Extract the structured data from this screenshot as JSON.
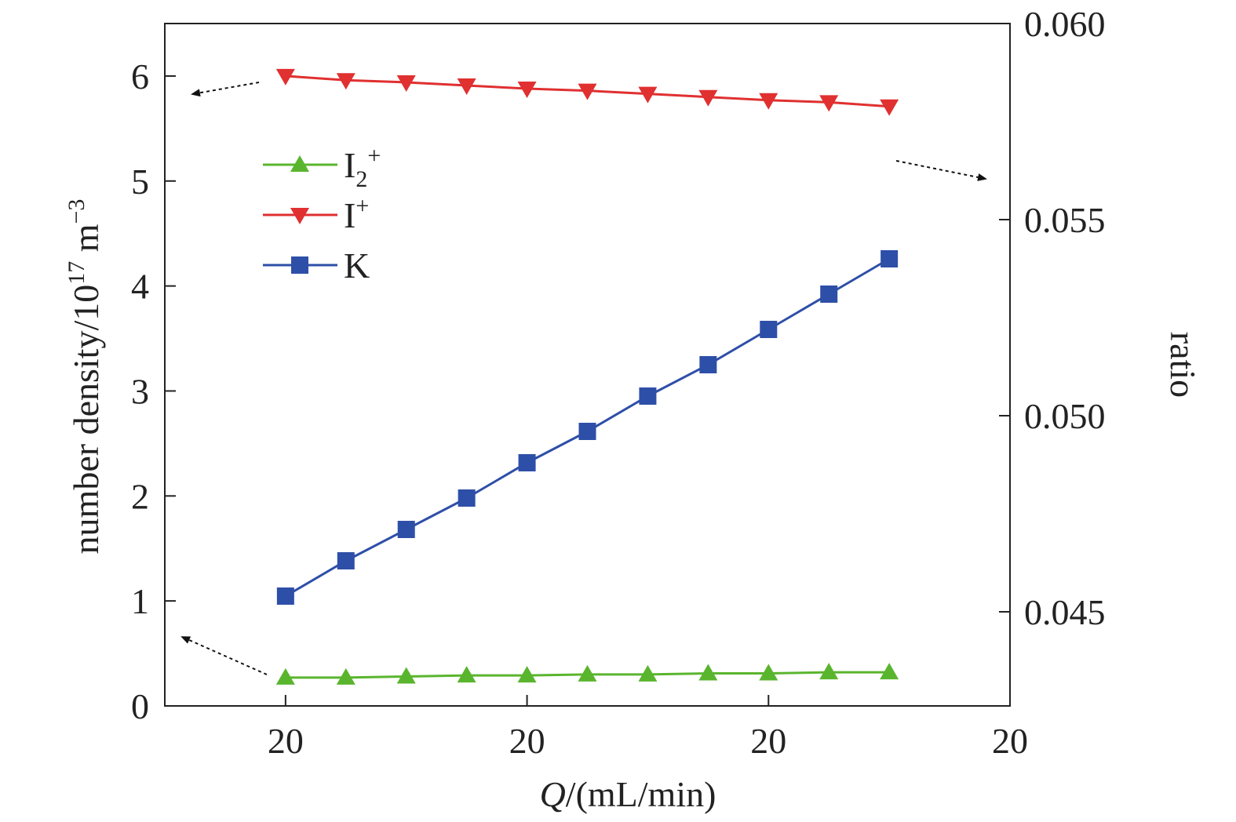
{
  "chart_data": {
    "type": "line",
    "xlabel": {
      "italic": "Q",
      "rest": "/(mL/min)"
    },
    "ylabel_left": {
      "base": "number density/10",
      "exp": "17",
      "unit": " m",
      "unit_exp": "−3"
    },
    "ylabel_right": "ratio",
    "x_ticks": [
      {
        "x": 1,
        "label": "20"
      },
      {
        "x": 5,
        "label": "20"
      },
      {
        "x": 9,
        "label": "20"
      },
      {
        "x": 13,
        "label": "20"
      }
    ],
    "xlim": [
      -1,
      13
    ],
    "y_left_ticks": [
      {
        "y": 0,
        "label": "0"
      },
      {
        "y": 1,
        "label": "1"
      },
      {
        "y": 2,
        "label": "2"
      },
      {
        "y": 3,
        "label": "3"
      },
      {
        "y": 4,
        "label": "4"
      },
      {
        "y": 5,
        "label": "5"
      },
      {
        "y": 6,
        "label": "6"
      }
    ],
    "ylim_left": [
      0,
      6.5
    ],
    "y_right_ticks": [
      {
        "y": 0.045,
        "label": "0.045"
      },
      {
        "y": 0.05,
        "label": "0.050"
      },
      {
        "y": 0.055,
        "label": "0.055"
      },
      {
        "y": 0.06,
        "label": "0.060"
      }
    ],
    "ylim_right": [
      0.0426,
      0.06
    ],
    "x": [
      1,
      2,
      3,
      4,
      5,
      6,
      7,
      8,
      9,
      10,
      11
    ],
    "series": [
      {
        "name": "I2+",
        "label_base": "I",
        "label_sub": "2",
        "label_sup": "+",
        "axis": "left",
        "marker": "triangle-up",
        "color": "#5ab52e",
        "values": [
          0.27,
          0.27,
          0.28,
          0.29,
          0.29,
          0.3,
          0.3,
          0.31,
          0.31,
          0.32,
          0.32
        ]
      },
      {
        "name": "I+",
        "label_base": "I",
        "label_sub": "",
        "label_sup": "+",
        "axis": "left",
        "marker": "triangle-down",
        "color": "#e03030",
        "values": [
          6.0,
          5.96,
          5.94,
          5.91,
          5.88,
          5.86,
          5.83,
          5.8,
          5.77,
          5.75,
          5.71
        ]
      },
      {
        "name": "K",
        "label_base": "K",
        "label_sub": "",
        "label_sup": "",
        "axis": "right",
        "marker": "square",
        "color": "#2e4fa8",
        "values": [
          0.0454,
          0.0463,
          0.0471,
          0.0479,
          0.0488,
          0.0496,
          0.0505,
          0.0513,
          0.0522,
          0.0531,
          0.054
        ]
      }
    ],
    "grid": false,
    "legend_position": "top-left"
  }
}
